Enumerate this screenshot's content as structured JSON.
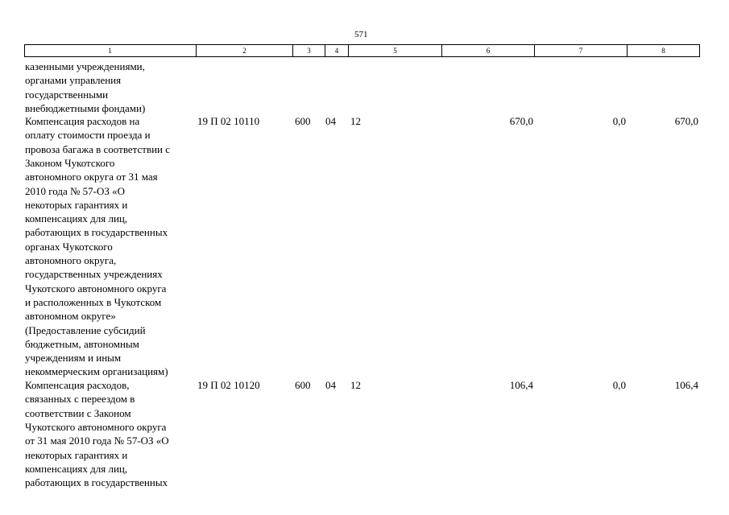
{
  "page_number": "571",
  "table": {
    "header": [
      "1",
      "2",
      "3",
      "4",
      "5",
      "6",
      "7",
      "8"
    ],
    "rows": [
      {
        "name_lines": [
          "казенными учреждениями,",
          "органами управления",
          "государственными",
          "внебюджетными фондами)"
        ]
      },
      {
        "name_lines": [
          "Компенсация расходов на",
          "оплату стоимости проезда и",
          "провоза багажа в соответствии с",
          "Законом Чукотского",
          "автономного округа от 31 мая",
          "2010 года № 57-ОЗ «О",
          "некоторых гарантиях и",
          "компенсациях для лиц,",
          "работающих в государственных",
          "органах Чукотского",
          "автономного округа,",
          "государственных учреждениях",
          "Чукотского автономного округа",
          "и расположенных в Чукотском",
          "автономном округе»",
          "(Предоставление субсидий",
          "бюджетным, автономным",
          "учреждениям и иным",
          "некоммерческим организациям)"
        ],
        "cells": [
          "19 П 02 10110",
          "600",
          "04",
          "12",
          "670,0",
          "0,0",
          "670,0"
        ]
      },
      {
        "name_lines": [
          "Компенсация расходов,",
          "связанных с переездом в",
          "соответствии с Законом",
          "Чукотского автономного округа",
          "от 31 мая 2010 года № 57-ОЗ «О",
          "некоторых гарантиях и",
          "компенсациях для лиц,",
          "работающих в государственных"
        ],
        "cells": [
          "19 П 02 10120",
          "600",
          "04",
          "12",
          "106,4",
          "0,0",
          "106,4"
        ]
      }
    ]
  }
}
